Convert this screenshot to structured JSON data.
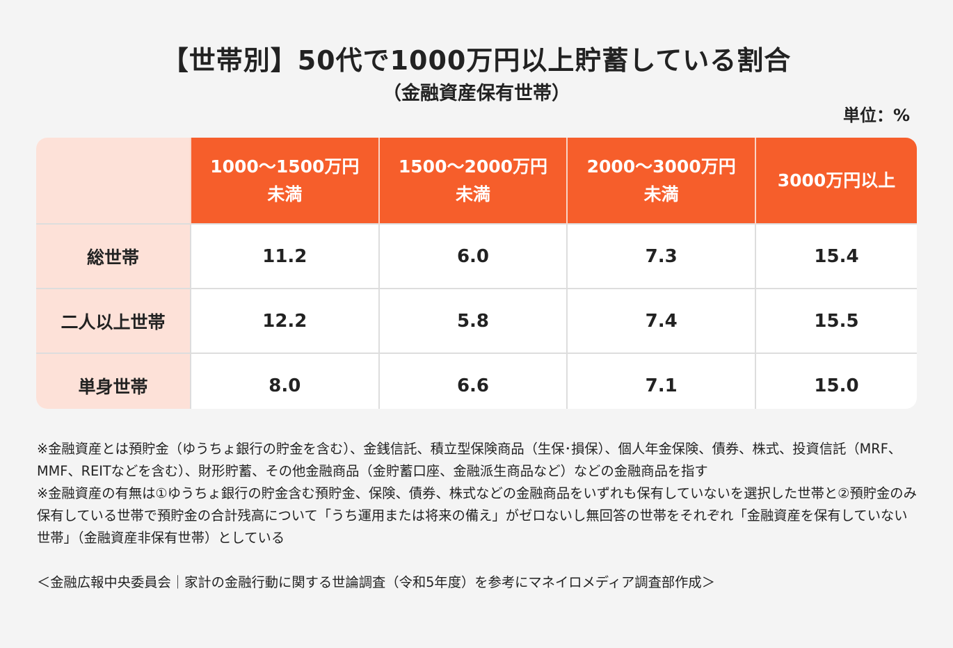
{
  "chart_data": {
    "type": "table",
    "title": "【世帯別】50代で1000万円以上貯蓄している割合",
    "subtitle": "（金融資産保有世帯）",
    "unit": "単位：%",
    "columns": [
      [
        "1000〜1500万円",
        "未満"
      ],
      [
        "1500〜2000万円",
        "未満"
      ],
      [
        "2000〜3000万円",
        "未満"
      ],
      [
        "3000万円以上"
      ]
    ],
    "rows": [
      {
        "label": "総世帯",
        "values": [
          "11.2",
          "6.0",
          "7.3",
          "15.4"
        ]
      },
      {
        "label": "二人以上世帯",
        "values": [
          "12.2",
          "5.8",
          "7.4",
          "15.5"
        ]
      },
      {
        "label": "単身世帯",
        "values": [
          "8.0",
          "6.6",
          "7.1",
          "15.0"
        ]
      }
    ],
    "colors": {
      "header": "#f65e2b",
      "row_header": "#fde1d8",
      "background": "#f4f4f4"
    }
  },
  "notes": [
    "※金融資産とは預貯金（ゆうちょ銀行の貯金を含む）、金銭信託、積立型保険商品（生保･損保）、個人年金保険、債券、株式、投資信託（MRF、MMF、REITなどを含む）、財形貯蓄、その他金融商品（金貯蓄口座、金融派生商品など）などの金融商品を指す",
    "※金融資産の有無は①ゆうちょ銀行の貯金含む預貯金、保険、債券、株式などの金融商品をいずれも保有していないを選択した世帯と②預貯金のみ保有している世帯で預貯金の合計残高について「うち運用または将来の備え」がゼロないし無回答の世帯をそれぞれ「金融資産を保有していない世帯」（金融資産非保有世帯）としている"
  ],
  "source": "＜金融広報中央委員会｜家計の金融行動に関する世論調査（令和5年度）を参考にマネイロメディア調査部作成＞"
}
